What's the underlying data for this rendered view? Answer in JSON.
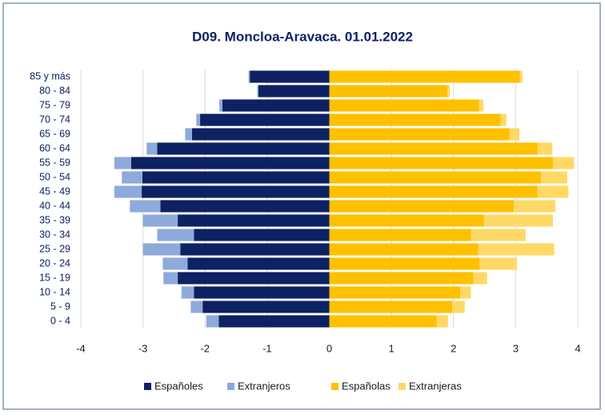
{
  "chart_data": {
    "type": "pyramid",
    "title": "D09. Moncloa-Aravaca. 01.01.2022",
    "categories": [
      "0 - 4",
      "5 - 9",
      "10 - 14",
      "15 - 19",
      "20 - 24",
      "25 - 29",
      "30 - 34",
      "35 - 39",
      "40 - 44",
      "45 - 49",
      "50 - 54",
      "55 - 59",
      "60 - 64",
      "65 - 69",
      "70 - 74",
      "75 - 79",
      "80 - 84",
      "85 y más"
    ],
    "series": [
      {
        "name": "Españoles",
        "color": "#0d2163",
        "values": [
          -1.78,
          -2.04,
          -2.18,
          -2.44,
          -2.28,
          -2.4,
          -2.18,
          -2.44,
          -2.72,
          -3.02,
          -3.01,
          -3.19,
          -2.77,
          -2.21,
          -2.08,
          -1.72,
          -1.14,
          -1.28
        ]
      },
      {
        "name": "Extranjeros",
        "color": "#8eaadb",
        "values": [
          -0.2,
          -0.19,
          -0.2,
          -0.23,
          -0.4,
          -0.6,
          -0.59,
          -0.56,
          -0.49,
          -0.44,
          -0.33,
          -0.27,
          -0.17,
          -0.11,
          -0.06,
          -0.05,
          -0.02,
          -0.02
        ]
      },
      {
        "name": "Españolas",
        "color": "#ffc000",
        "values": [
          1.73,
          1.98,
          2.11,
          2.32,
          2.42,
          2.4,
          2.28,
          2.49,
          2.97,
          3.35,
          3.41,
          3.6,
          3.35,
          2.9,
          2.76,
          2.41,
          1.9,
          3.07
        ]
      },
      {
        "name": "Extranjeras",
        "color": "#ffd966",
        "values": [
          0.18,
          0.2,
          0.17,
          0.22,
          0.6,
          1.22,
          0.88,
          1.11,
          0.67,
          0.5,
          0.42,
          0.34,
          0.24,
          0.16,
          0.09,
          0.07,
          0.04,
          0.04
        ]
      }
    ],
    "xlim": [
      -4,
      4
    ],
    "xticks": [
      -4,
      -3,
      -2,
      -1,
      0,
      1,
      2,
      3,
      4
    ],
    "grid": true,
    "legend": "bottom"
  }
}
